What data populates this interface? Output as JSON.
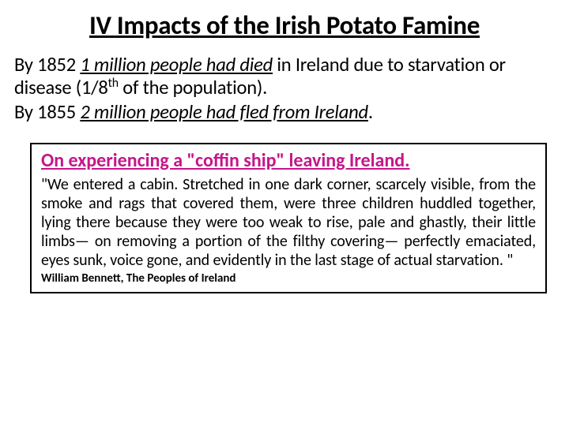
{
  "title": "IV Impacts of the Irish Potato Famine",
  "para1_a": "By 1852 ",
  "para1_b": "1 million people had died",
  "para1_c": " in Ireland due to starvation or disease (1/8",
  "para1_sup": "th",
  "para1_d": "  of the population).",
  "para2_a": "By 1855  ",
  "para2_b": "2 million people had fled from Ireland",
  "para2_c": ".",
  "quote_heading": "On experiencing a \"coffin ship\" leaving Ireland.",
  "quote_body": "\"We entered a cabin. Stretched in one dark corner, scarcely visible, from the smoke and rags that covered them, were three children huddled together, lying there because they were too weak to rise, pale and ghastly, their little limbs— on removing a portion of the filthy covering— perfectly emaciated, eyes sunk, voice gone, and evidently in the last stage of actual starvation. \"",
  "quote_cite": "William Bennett, The Peoples of Ireland",
  "colors": {
    "heading_accent": "#c5158a",
    "text": "#000000",
    "background": "#ffffff",
    "border": "#000000"
  }
}
